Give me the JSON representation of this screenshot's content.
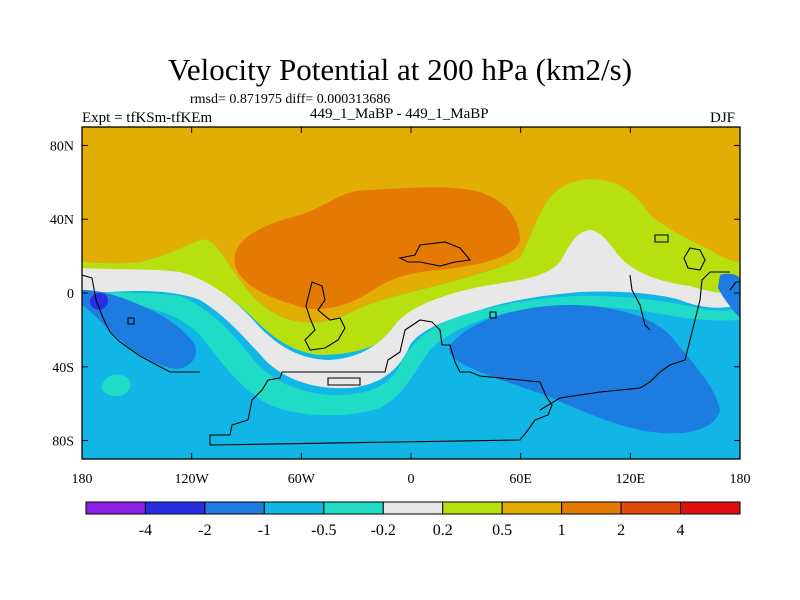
{
  "chart_data": {
    "type": "contour_map",
    "title": "Velocity Potential at 200 hPa (km2/s)",
    "stats_text": "rmsd= 0.871975 diff= 0.000313686",
    "left_label": "Expt = tfKSm-tfKEm",
    "center_label": "449_1_MaBP - 449_1_MaBP",
    "right_label": "DJF",
    "xlim": [
      -180,
      180
    ],
    "ylim": [
      -90,
      90
    ],
    "x_ticks": [
      {
        "value": -180,
        "label": "180"
      },
      {
        "value": -120,
        "label": "120W"
      },
      {
        "value": -60,
        "label": "60W"
      },
      {
        "value": 0,
        "label": "0"
      },
      {
        "value": 60,
        "label": "60E"
      },
      {
        "value": 120,
        "label": "120E"
      },
      {
        "value": 180,
        "label": "180"
      }
    ],
    "y_ticks": [
      {
        "value": 80,
        "label": "80N"
      },
      {
        "value": 40,
        "label": "40N"
      },
      {
        "value": 0,
        "label": "0"
      },
      {
        "value": -40,
        "label": "40S"
      },
      {
        "value": -80,
        "label": "80S"
      }
    ],
    "colorbar": {
      "levels": [
        -4,
        -2,
        -1,
        -0.5,
        -0.2,
        0.2,
        0.5,
        1,
        2,
        4
      ],
      "level_labels": [
        "-4",
        "-2",
        "-1",
        "-0.5",
        "-0.2",
        "0.2",
        "0.5",
        "1",
        "2",
        "4"
      ],
      "colors": [
        "#8a1fe6",
        "#2a2ee0",
        "#1c7ce0",
        "#12b6e6",
        "#20dcc6",
        "#e8e8e8",
        "#b8e00e",
        "#e2ae06",
        "#e47a04",
        "#e24a0a",
        "#e01010"
      ]
    },
    "regions": [
      {
        "name": "northern-positive-0.5-1",
        "value_range": [
          0.5,
          1
        ],
        "color_index": 7
      },
      {
        "name": "northern-positive-1-2",
        "value_range": [
          1,
          2
        ],
        "color_index": 8
      },
      {
        "name": "transition-0.2-0.5",
        "value_range": [
          0.2,
          0.5
        ],
        "color_index": 6
      },
      {
        "name": "near-zero-band",
        "value_range": [
          -0.2,
          0.2
        ],
        "color_index": 5
      },
      {
        "name": "southern-negative-0.5-0.2",
        "value_range": [
          -0.5,
          -0.2
        ],
        "color_index": 4
      },
      {
        "name": "southern-negative-1-0.5",
        "value_range": [
          -1,
          -0.5
        ],
        "color_index": 3
      },
      {
        "name": "southern-negative-2-1",
        "value_range": [
          -2,
          -1
        ],
        "color_index": 2
      },
      {
        "name": "pacific-minimum",
        "value_range": [
          -4,
          -2
        ],
        "color_index": 1
      }
    ]
  }
}
